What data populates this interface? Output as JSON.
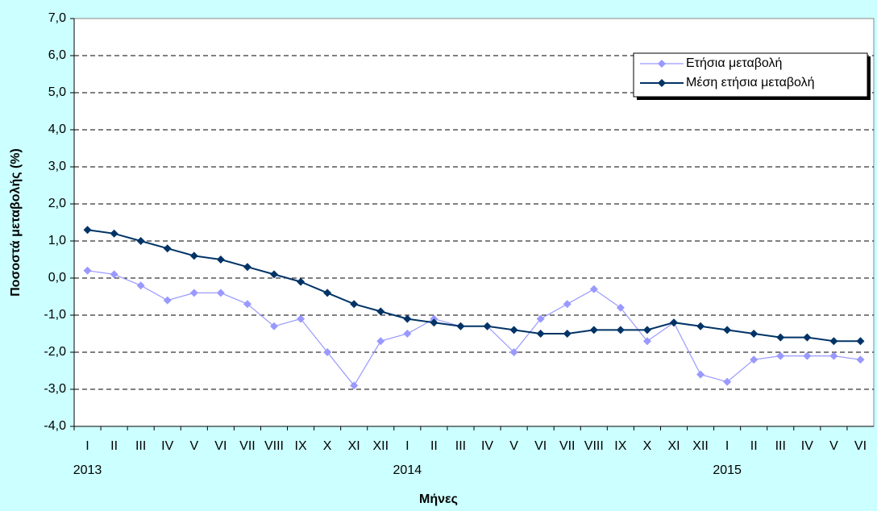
{
  "chart_data": {
    "type": "line",
    "x_label": "Μήνες",
    "y_label": "Ποσοστά μεταβολής (%)",
    "categories": [
      "I",
      "II",
      "III",
      "IV",
      "V",
      "VI",
      "VII",
      "VIII",
      "IX",
      "X",
      "XI",
      "XII",
      "I",
      "II",
      "III",
      "IV",
      "V",
      "VI",
      "VII",
      "VIII",
      "IX",
      "X",
      "XI",
      "XII",
      "I",
      "II",
      "III",
      "IV",
      "V",
      "VI"
    ],
    "category_groups": [
      "2013",
      null,
      null,
      null,
      null,
      null,
      null,
      null,
      null,
      null,
      null,
      null,
      "2014",
      null,
      null,
      null,
      null,
      null,
      null,
      null,
      null,
      null,
      null,
      null,
      "2015",
      null,
      null,
      null,
      null,
      null
    ],
    "series": [
      {
        "name": "Ετήσια μεταβολή",
        "color": "#9999ff",
        "values": [
          0.2,
          0.1,
          -0.2,
          -0.6,
          -0.4,
          -0.4,
          -0.7,
          -1.3,
          -1.1,
          -2.0,
          -2.9,
          -1.7,
          -1.5,
          -1.1,
          -1.3,
          -1.3,
          -2.0,
          -1.1,
          -0.7,
          -0.3,
          -0.8,
          -1.7,
          -1.2,
          -2.6,
          -2.8,
          -2.2,
          -2.1,
          -2.1,
          -2.1,
          -2.2
        ]
      },
      {
        "name": "Μέση ετήσια μεταβολή",
        "color": "#003366",
        "values": [
          1.3,
          1.2,
          1.0,
          0.8,
          0.6,
          0.5,
          0.3,
          0.1,
          -0.1,
          -0.4,
          -0.7,
          -0.9,
          -1.1,
          -1.2,
          -1.3,
          -1.3,
          -1.4,
          -1.5,
          -1.5,
          -1.4,
          -1.4,
          -1.4,
          -1.2,
          -1.3,
          -1.4,
          -1.5,
          -1.6,
          -1.6,
          -1.7,
          -1.7
        ]
      }
    ],
    "ylim": [
      -4,
      7
    ],
    "yticks": [
      {
        "value": -4,
        "label": "-4,0"
      },
      {
        "value": -3,
        "label": "-3,0"
      },
      {
        "value": -2,
        "label": "-2,0"
      },
      {
        "value": -1,
        "label": "-1,0"
      },
      {
        "value": 0,
        "label": "0,0"
      },
      {
        "value": 1,
        "label": "1,0"
      },
      {
        "value": 2,
        "label": "2,0"
      },
      {
        "value": 3,
        "label": "3,0"
      },
      {
        "value": 4,
        "label": "4,0"
      },
      {
        "value": 5,
        "label": "5,0"
      },
      {
        "value": 6,
        "label": "6,0"
      },
      {
        "value": 7,
        "label": "7,0"
      }
    ],
    "grid": true,
    "legend": "upper right"
  }
}
